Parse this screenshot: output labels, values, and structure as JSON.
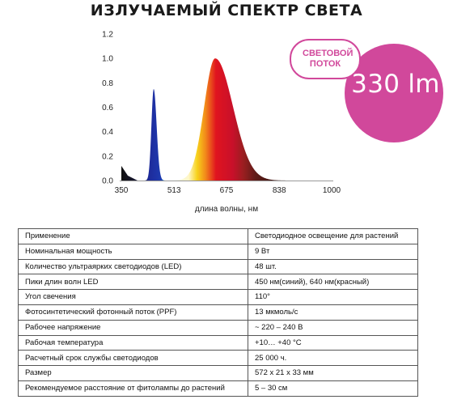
{
  "title": "ИЗЛУЧАЕМЫЙ СПЕКТР СВЕТА",
  "chart_data": {
    "type": "area",
    "xlabel": "длина волны, нм",
    "ylabel": "",
    "xlim": [
      350,
      1000
    ],
    "ylim": [
      0,
      1.2
    ],
    "x_ticks": [
      "350",
      "513",
      "675",
      "838",
      "1000"
    ],
    "y_ticks": [
      "0.0",
      "0.2",
      "0.4",
      "0.6",
      "0.8",
      "1.0",
      "1.2"
    ],
    "grid": false,
    "series": [
      {
        "type": "peak",
        "peak_x": 450,
        "peak_y": 0.75,
        "width_left": 7,
        "width_right": 9
      },
      {
        "type": "peak",
        "peak_x": 640,
        "peak_y": 1.0,
        "width_left": 34,
        "width_right": 55
      }
    ],
    "baseline": [
      {
        "x": 350,
        "y": 0.12
      },
      {
        "x": 370,
        "y": 0.04
      },
      {
        "x": 400,
        "y": 0.0
      }
    ]
  },
  "flux": {
    "label": "СВЕТОВОЙ ПОТОК",
    "value": "330 lm"
  },
  "specs": [
    [
      "Применение",
      "Светодиодное освещение для растений"
    ],
    [
      "Номинальная мощность",
      "9 Вт"
    ],
    [
      "Количество ультраярких светодиодов (LED)",
      "48 шт."
    ],
    [
      "Пики длин волн LED",
      "450 нм(синий), 640 нм(красный)"
    ],
    [
      "Угол свечения",
      "110°"
    ],
    [
      "Фотосинтетический фотонный поток (PPF)",
      "13 мкмоль/с"
    ],
    [
      "Рабочее напряжение",
      "~ 220 – 240 В"
    ],
    [
      "Рабочая температура",
      "+10… +40 °C"
    ],
    [
      "Расчетный срок службы светодиодов",
      "25 000 ч."
    ],
    [
      "Размер",
      "572 x 21 x 33 мм"
    ],
    [
      "Рекомендуемое расстояние от фитолампы до растений",
      "5 – 30 см"
    ]
  ],
  "colors": {
    "accent": "#d1489b",
    "blue_peak": "#1b2a8a",
    "red_peak": "#d3102a"
  }
}
